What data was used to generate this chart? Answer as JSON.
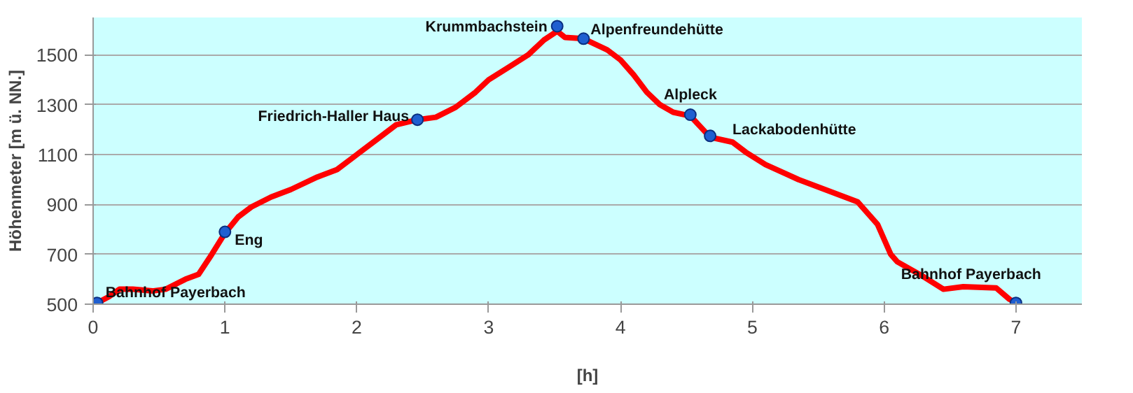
{
  "chart_data": {
    "type": "line",
    "xlabel": "[h]",
    "ylabel": "Höhenmeter [m ü. NN.]",
    "xlim": [
      0,
      7.5
    ],
    "ylim": [
      500,
      1650
    ],
    "xticks": [
      0,
      1,
      2,
      3,
      4,
      5,
      6,
      7
    ],
    "yticks": [
      500,
      700,
      900,
      1100,
      1300,
      1500
    ],
    "grid": "y",
    "series": [
      {
        "type": "line",
        "color": "#ff0000",
        "marker": "none",
        "x": [
          0.03,
          0.12,
          0.2,
          0.3,
          0.45,
          0.55,
          0.7,
          0.8,
          0.9,
          1.0,
          1.1,
          1.2,
          1.35,
          1.5,
          1.7,
          1.85,
          2.0,
          2.15,
          2.3,
          2.46,
          2.6,
          2.75,
          2.9,
          3.0,
          3.15,
          3.3,
          3.42,
          3.52,
          3.58,
          3.72,
          3.9,
          4.0,
          4.1,
          4.2,
          4.3,
          4.4,
          4.53,
          4.68,
          4.85,
          4.95,
          5.1,
          5.35,
          5.6,
          5.8,
          5.95,
          6.05,
          6.1,
          6.3,
          6.45,
          6.6,
          6.85,
          6.95,
          7.0
        ],
        "values": [
          505,
          530,
          560,
          560,
          553,
          560,
          600,
          620,
          700,
          785,
          850,
          890,
          930,
          960,
          1010,
          1040,
          1100,
          1160,
          1220,
          1240,
          1250,
          1290,
          1350,
          1400,
          1450,
          1500,
          1560,
          1595,
          1570,
          1565,
          1520,
          1480,
          1420,
          1350,
          1300,
          1270,
          1255,
          1170,
          1150,
          1110,
          1060,
          1000,
          950,
          910,
          820,
          700,
          670,
          610,
          560,
          570,
          565,
          520,
          505
        ]
      },
      {
        "type": "scatter",
        "color": "#1f5fd0",
        "marker": "circle",
        "x": [
          0.03,
          1.0,
          2.46,
          3.52,
          3.72,
          4.53,
          4.68,
          7.0
        ],
        "values": [
          505,
          790,
          1240,
          1615,
          1565,
          1260,
          1175,
          505
        ]
      }
    ],
    "annotations": [
      {
        "text": "Bahnhof Payerbach",
        "x": 0.03,
        "y": 505
      },
      {
        "text": "Eng",
        "x": 1.0,
        "y": 790
      },
      {
        "text": "Friedrich-Haller Haus",
        "x": 2.46,
        "y": 1240
      },
      {
        "text": "Krummbachstein",
        "x": 3.52,
        "y": 1615
      },
      {
        "text": "Alpenfreundehütte",
        "x": 3.72,
        "y": 1565
      },
      {
        "text": "Alpleck",
        "x": 4.53,
        "y": 1260
      },
      {
        "text": "Lackabodenhütte",
        "x": 4.68,
        "y": 1175
      },
      {
        "text": "Bahnhof Payerbach",
        "x": 7.0,
        "y": 505
      }
    ]
  }
}
